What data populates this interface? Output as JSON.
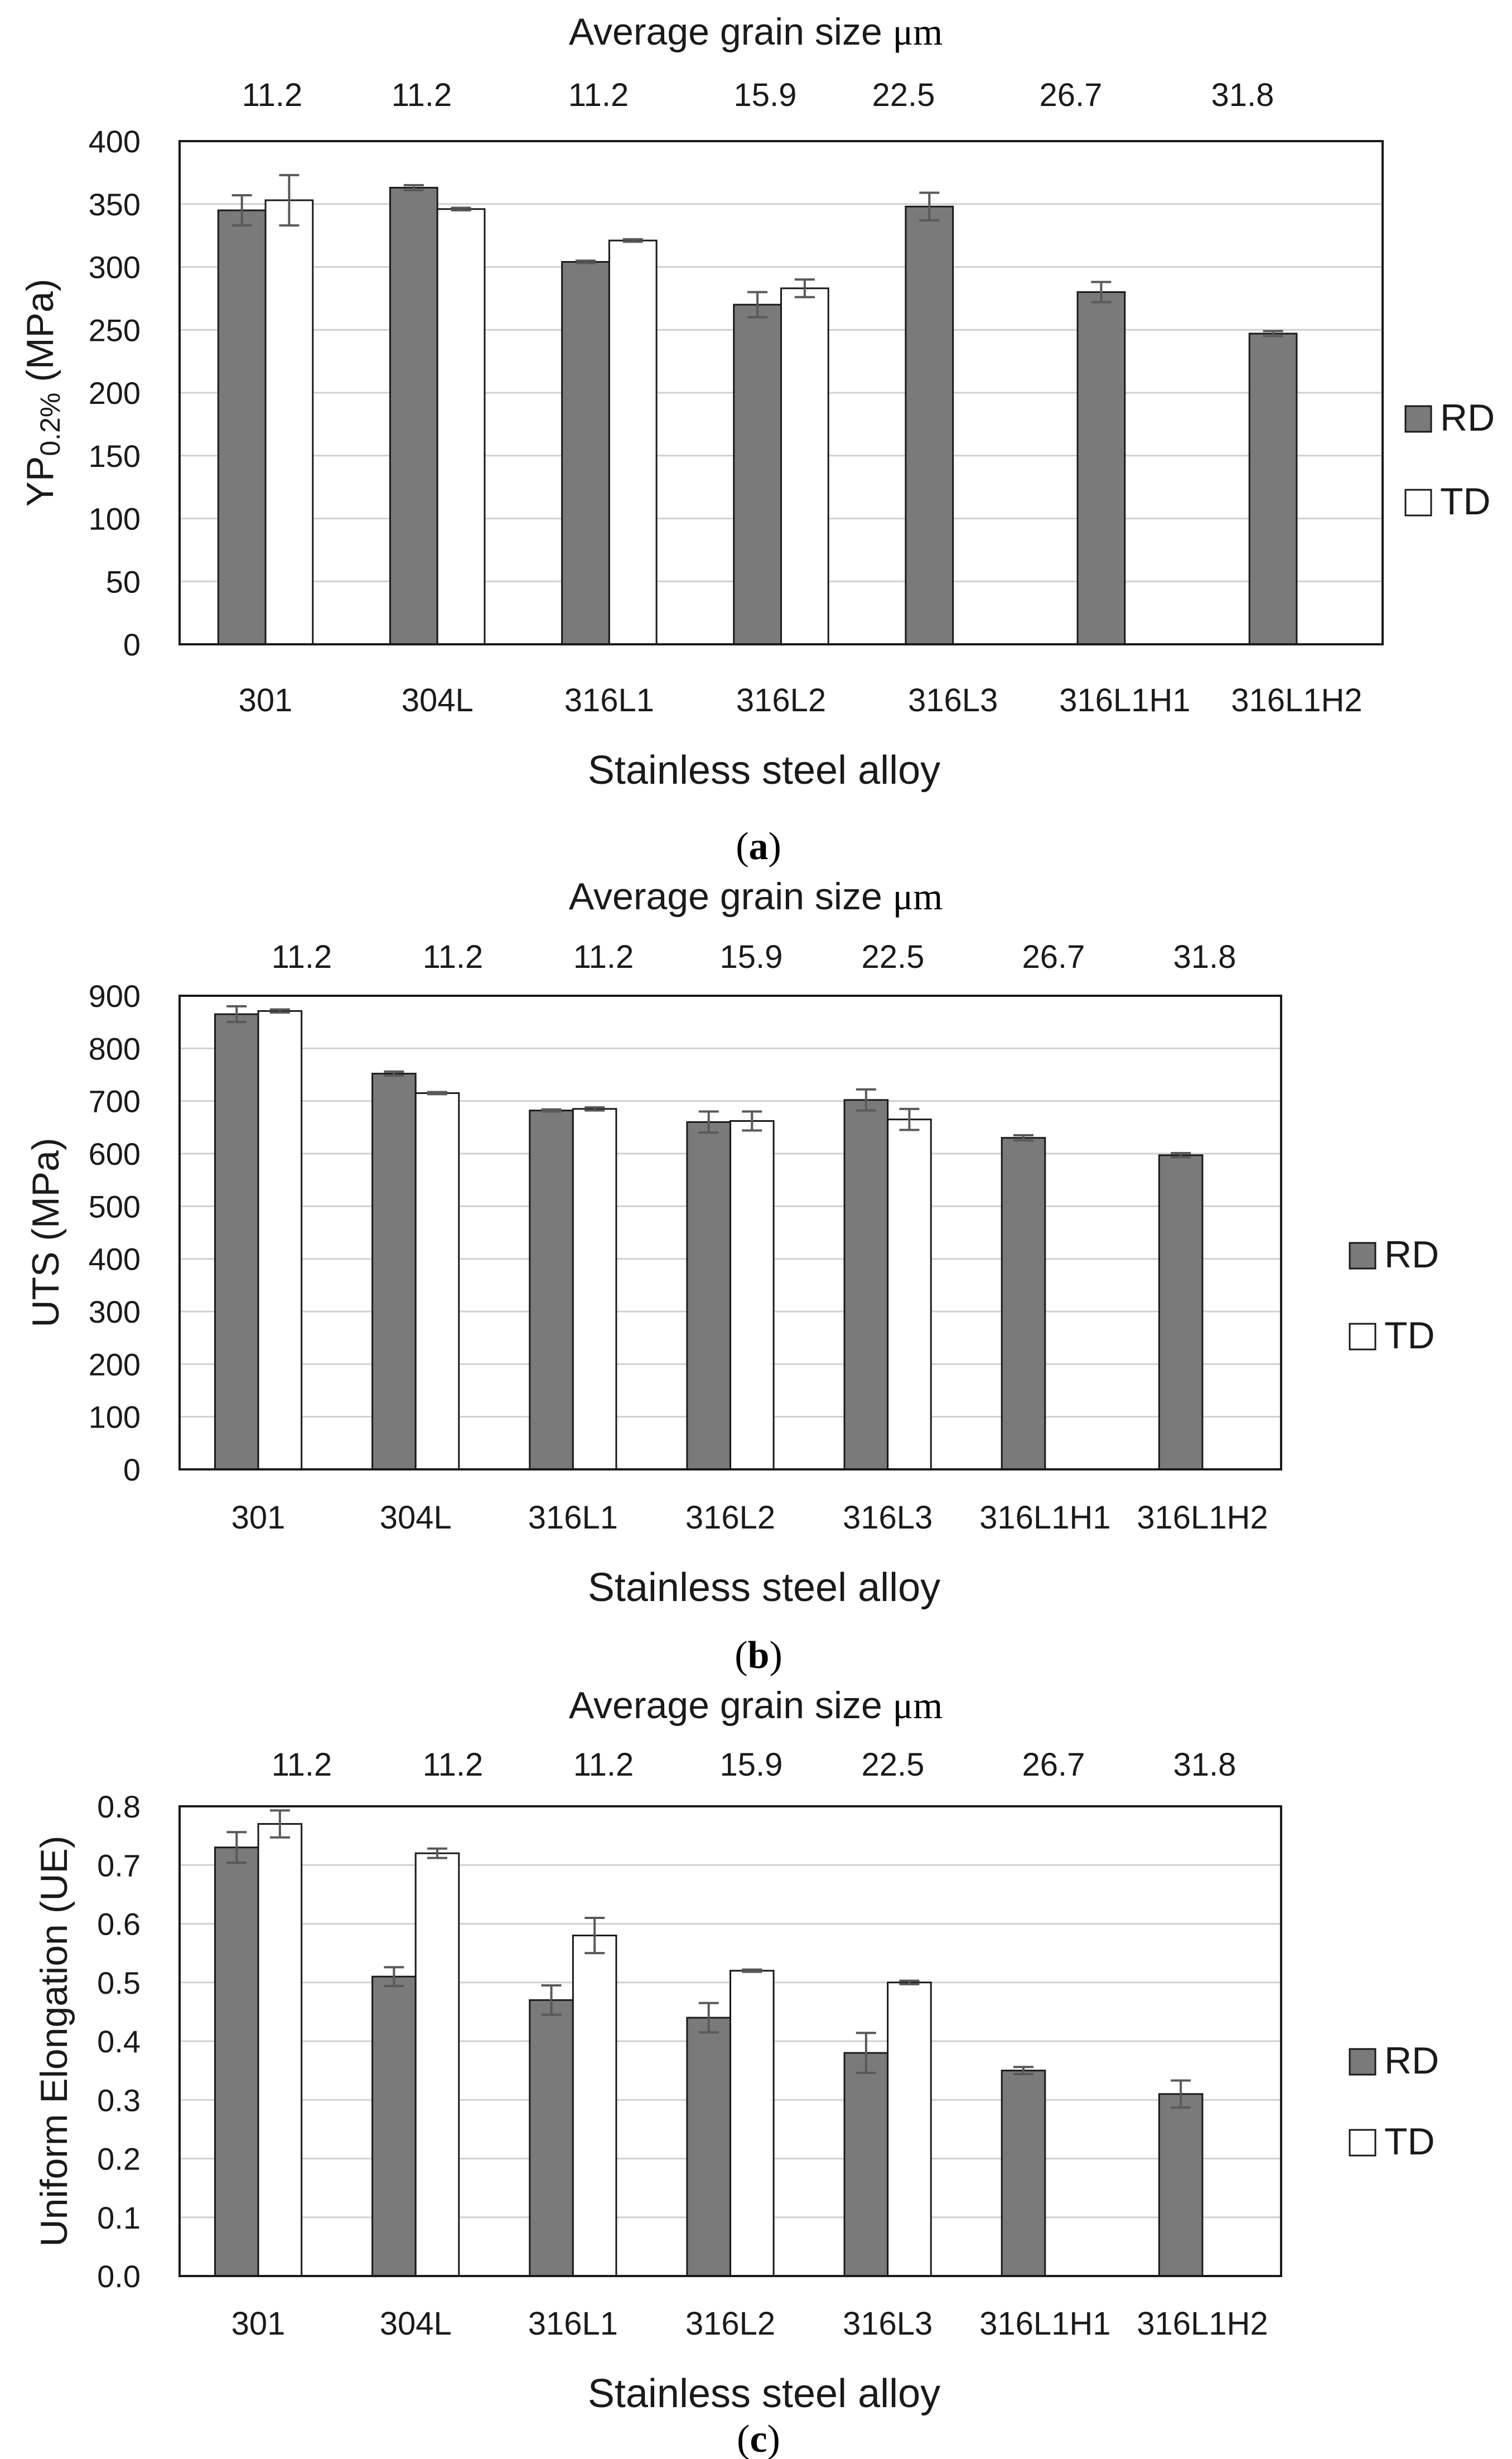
{
  "legend": {
    "rd_label": "RD",
    "td_label": "TD"
  },
  "colors": {
    "rd_fill": "#7a7a7a",
    "td_fill": "#ffffff",
    "bar_stroke": "#1a1a1a",
    "gridline": "#d0d0d0",
    "frame": "#1a1a1a",
    "error_bar": "#595959"
  },
  "chart_data": [
    {
      "type": "bar",
      "panel_label": "a",
      "categories": [
        "301",
        "304L",
        "316L1",
        "316L2",
        "316L3",
        "316L1H1",
        "316L1H2"
      ],
      "grain_sizes": [
        "11.2",
        "11.2",
        "11.2",
        "15.9",
        "22.5",
        "26.7",
        "31.8"
      ],
      "top_axis_label": "Average grain size",
      "top_axis_unit": "μm",
      "ylabel_main": "YP",
      "ylabel_sub": "0.2%",
      "ylabel_tail": " (MPa)",
      "xlabel": "Stainless steel alloy",
      "ylim": [
        0,
        400
      ],
      "y_ticks": [
        0,
        50,
        100,
        150,
        200,
        250,
        300,
        350,
        400
      ],
      "tick_decimals": 0,
      "series": [
        {
          "name": "RD",
          "values": [
            345,
            363,
            304,
            270,
            348,
            280,
            247
          ],
          "errors": [
            12,
            2,
            1,
            10,
            11,
            8,
            2
          ]
        },
        {
          "name": "TD",
          "values": [
            353,
            346,
            321,
            283,
            null,
            null,
            null
          ],
          "errors": [
            20,
            1,
            1,
            7,
            null,
            null,
            null
          ]
        }
      ]
    },
    {
      "type": "bar",
      "panel_label": "b",
      "categories": [
        "301",
        "304L",
        "316L1",
        "316L2",
        "316L3",
        "316L1H1",
        "316L1H2"
      ],
      "grain_sizes": [
        "11.2",
        "11.2",
        "11.2",
        "15.9",
        "22.5",
        "26.7",
        "31.8"
      ],
      "top_axis_label": "Average grain size",
      "top_axis_unit": "μm",
      "ylabel_main": "UTS (MPa)",
      "ylabel_sub": "",
      "ylabel_tail": "",
      "xlabel": "Stainless steel alloy",
      "ylim": [
        0,
        900
      ],
      "y_ticks": [
        0,
        100,
        200,
        300,
        400,
        500,
        600,
        700,
        800,
        900
      ],
      "tick_decimals": 0,
      "series": [
        {
          "name": "RD",
          "values": [
            865,
            752,
            682,
            660,
            702,
            630,
            597
          ],
          "errors": [
            15,
            4,
            2,
            20,
            20,
            5,
            4
          ]
        },
        {
          "name": "TD",
          "values": [
            871,
            715,
            685,
            662,
            665,
            null,
            null
          ],
          "errors": [
            3,
            2,
            3,
            18,
            20,
            null,
            null
          ]
        }
      ]
    },
    {
      "type": "bar",
      "panel_label": "c",
      "categories": [
        "301",
        "304L",
        "316L1",
        "316L2",
        "316L3",
        "316L1H1",
        "316L1H2"
      ],
      "grain_sizes": [
        "11.2",
        "11.2",
        "11.2",
        "15.9",
        "22.5",
        "26.7",
        "31.8"
      ],
      "top_axis_label": "Average grain size",
      "top_axis_unit": "μm",
      "ylabel_main": "Uniform Elongation (UE)",
      "ylabel_sub": "",
      "ylabel_tail": "",
      "xlabel": "Stainless steel alloy",
      "ylim": [
        0,
        0.8
      ],
      "y_ticks": [
        0,
        0.1,
        0.2,
        0.3,
        0.4,
        0.5,
        0.6,
        0.7,
        0.8
      ],
      "tick_decimals": 1,
      "series": [
        {
          "name": "RD",
          "values": [
            0.73,
            0.51,
            0.47,
            0.44,
            0.38,
            0.35,
            0.31
          ],
          "errors": [
            0.026,
            0.016,
            0.025,
            0.025,
            0.034,
            0.006,
            0.023
          ]
        },
        {
          "name": "TD",
          "values": [
            0.77,
            0.72,
            0.58,
            0.52,
            0.5,
            null,
            null
          ],
          "errors": [
            0.023,
            0.008,
            0.03,
            0.002,
            0.003,
            null,
            null
          ]
        }
      ]
    }
  ]
}
